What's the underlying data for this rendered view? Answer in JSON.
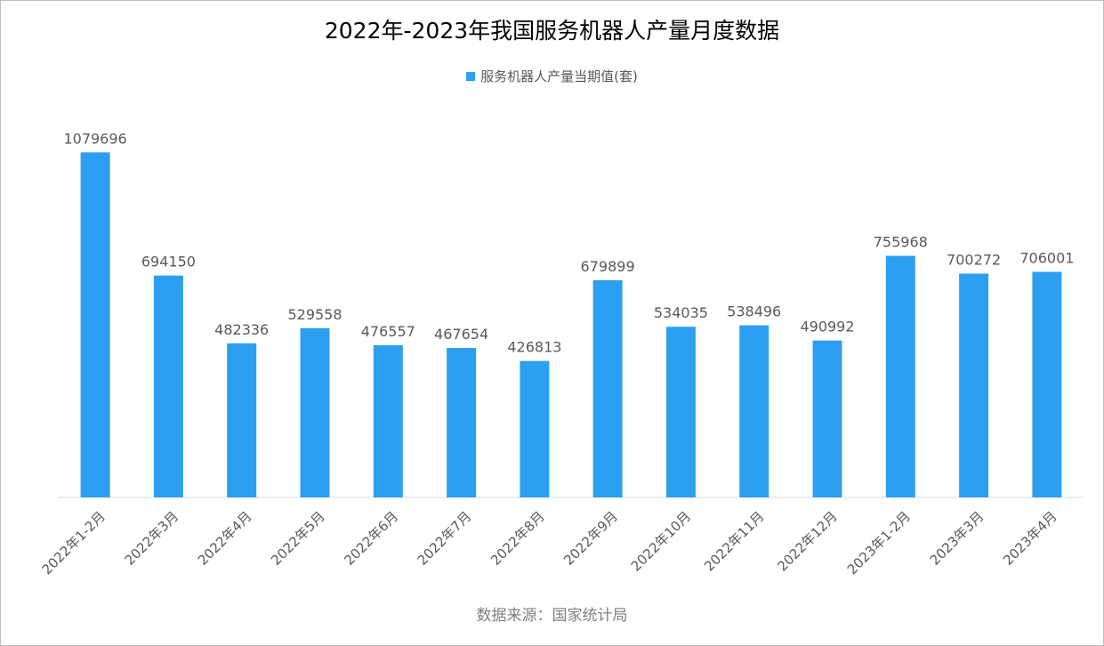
{
  "chart_data": {
    "type": "bar",
    "title": "2022年-2023年我国服务机器人产量月度数据",
    "categories": [
      "2022年1-2月",
      "2022年3月",
      "2022年4月",
      "2022年5月",
      "2022年6月",
      "2022年7月",
      "2022年8月",
      "2022年9月",
      "2022年10月",
      "2022年11月",
      "2022年12月",
      "2023年1-2月",
      "2023年3月",
      "2023年4月"
    ],
    "series": [
      {
        "name": "服务机器人产量当期值(套)",
        "values": [
          1079696,
          694150,
          482336,
          529558,
          476557,
          467654,
          426813,
          679899,
          534035,
          538496,
          490992,
          755968,
          700272,
          706001
        ]
      }
    ],
    "ylim": [
      0,
      1100000
    ],
    "grid": false,
    "legend_position": "top-center",
    "data_labels": true
  },
  "colors": {
    "bar": "#2d9ff0",
    "axis": "#d9d9d9"
  },
  "source": "数据来源：国家统计局"
}
